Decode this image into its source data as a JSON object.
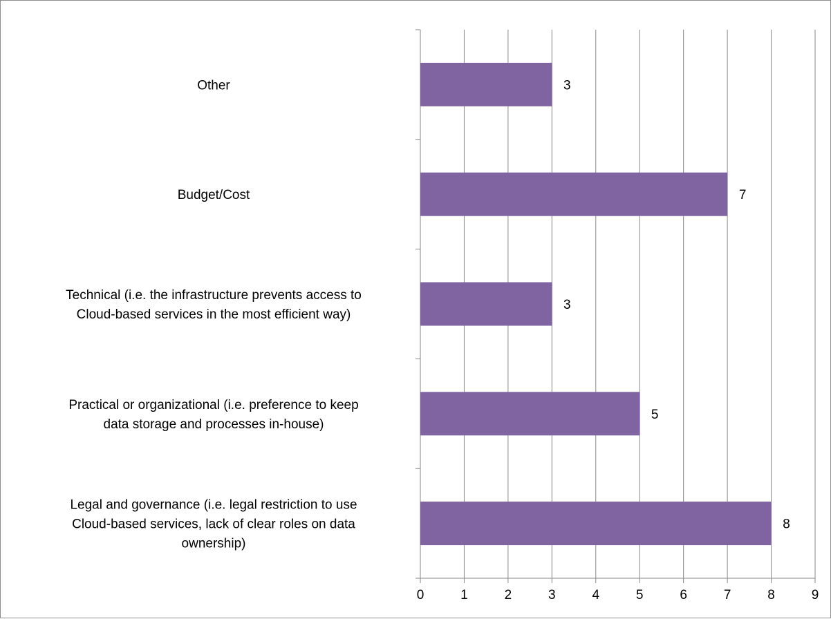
{
  "chart_data": {
    "type": "bar",
    "orientation": "horizontal",
    "categories": [
      "Other",
      "Budget/Cost",
      "Technical (i.e. the infrastructure prevents access to Cloud-based services in the most efficient way)",
      "Practical or organizational (i.e. preference to keep data storage and processes in-house)",
      "Legal and governance (i.e. legal restriction to use Cloud-based services, lack of clear roles on data ownership)"
    ],
    "category_lines": [
      [
        "Other"
      ],
      [
        "Budget/Cost"
      ],
      [
        "Technical (i.e. the infrastructure prevents access to",
        "Cloud-based services in the most efficient way)"
      ],
      [
        "Practical or organizational (i.e. preference to keep",
        "data storage and processes in-house)"
      ],
      [
        "Legal and governance (i.e. legal restriction to use",
        "Cloud-based services, lack of clear roles on data",
        "ownership)"
      ]
    ],
    "values": [
      3,
      7,
      3,
      5,
      8
    ],
    "data_labels": [
      "3",
      "7",
      "3",
      "5",
      "8"
    ],
    "xlim": [
      0,
      9
    ],
    "x_ticks": [
      "0",
      "1",
      "2",
      "3",
      "4",
      "5",
      "6",
      "7",
      "8",
      "9"
    ],
    "title": "",
    "xlabel": "",
    "ylabel": "",
    "grid": "vertical gridlines on",
    "legend": "none",
    "colors": {
      "bar": "#8064a2",
      "grid": "#878787",
      "axis": "#878787",
      "border": "#8c8c8c"
    }
  }
}
